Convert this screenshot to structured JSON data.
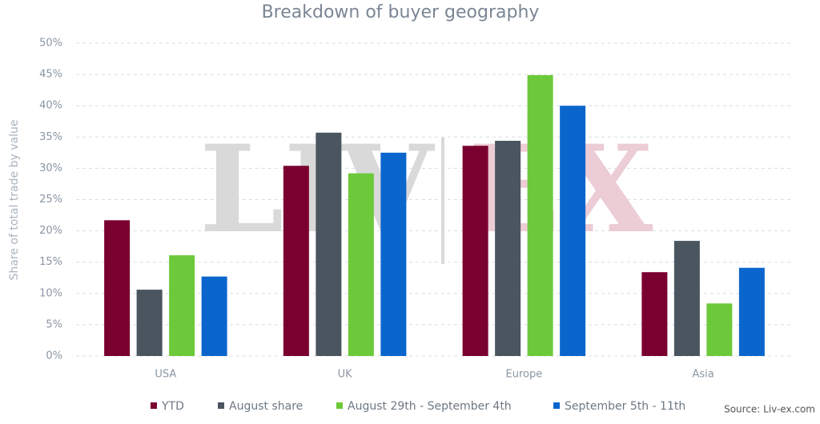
{
  "chart_data": {
    "type": "bar",
    "title": "Breakdown of buyer geography",
    "y_label": "Share of total trade by value",
    "categories": [
      "USA",
      "UK",
      "Europe",
      "Asia"
    ],
    "series": [
      {
        "name": "YTD",
        "color": "#7a0030",
        "values": [
          21.7,
          30.4,
          33.6,
          13.4
        ]
      },
      {
        "name": "August share",
        "color": "#4a5560",
        "values": [
          10.6,
          35.7,
          34.4,
          18.4
        ]
      },
      {
        "name": "August 29th - September 4th",
        "color": "#6cc93a",
        "values": [
          16.1,
          29.2,
          44.9,
          8.4
        ]
      },
      {
        "name": "September 5th - 11th",
        "color": "#0a66cc",
        "values": [
          12.7,
          32.5,
          40.0,
          14.1
        ]
      }
    ],
    "ylim": [
      0,
      50
    ],
    "yticks": [
      {
        "value": 0,
        "label": "0%"
      },
      {
        "value": 5,
        "label": "5%"
      },
      {
        "value": 10,
        "label": "10%"
      },
      {
        "value": 15,
        "label": "15%"
      },
      {
        "value": 20,
        "label": "20%"
      },
      {
        "value": 25,
        "label": "25%"
      },
      {
        "value": 30,
        "label": "30%"
      },
      {
        "value": 35,
        "label": "35%"
      },
      {
        "value": 40,
        "label": "40%"
      },
      {
        "value": 45,
        "label": "45%"
      },
      {
        "value": 50,
        "label": "50%"
      }
    ],
    "grid": true,
    "legend": "bottom",
    "watermark": [
      "LIV",
      "EX"
    ],
    "source": "Source: Liv-ex.com"
  }
}
